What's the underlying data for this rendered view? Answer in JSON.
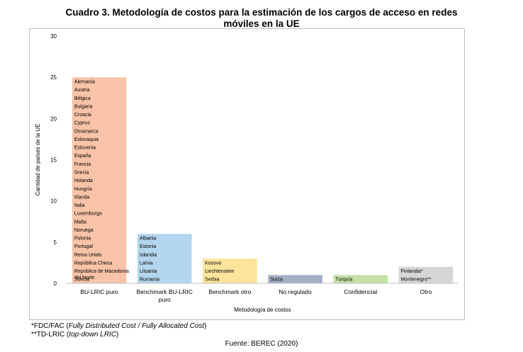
{
  "title_line1": "Cuadro 3. Metodología de costos para la estimación de los cargos de acceso en redes",
  "title_line2": "móviles en la UE",
  "chart_data": {
    "type": "bar",
    "title": "Cuadro 3. Metodología de costos para la estimación de los cargos de acceso en redes móviles en la UE",
    "xlabel": "Metodología de costos",
    "ylabel": "Cantidad de países de la UE",
    "ylim": [
      0,
      30
    ],
    "yticks": [
      0,
      5,
      10,
      15,
      20,
      25,
      30
    ],
    "grid": false,
    "categories": [
      "BU-LRIC puro",
      "Benchmark BU-LRIC puro",
      "Benchmark otro",
      "No regulado",
      "Confidencial",
      "Otro"
    ],
    "values": [
      25,
      6,
      3,
      1,
      1,
      2
    ],
    "colors": [
      "#f8c3a8",
      "#b4d5ee",
      "#fde49c",
      "#a4aec4",
      "#c5e0a5",
      "#d6d6d6"
    ],
    "bar_labels": [
      [
        "Alemania",
        "Austria",
        "Bélgica",
        "Bulgaria",
        "Croacia",
        "Cyprus",
        "Dinamarca",
        "Eslovaquia",
        "Eslovenia",
        "España",
        "Francia",
        "Grecia",
        "Holanda",
        "Hungría",
        "Irlanda",
        "Italia",
        "Luxemburgo",
        "Malta",
        "Noruega",
        "Polonia",
        "Portugal",
        "Reino Unido",
        "República Checa",
        "República de Macedonia del Norte",
        "Suecia"
      ],
      [
        "Albania",
        "Estonia",
        "Islandia",
        "Latvia",
        "Lituania",
        "Rumania"
      ],
      [
        "Kosovo",
        "Liechtenstein",
        "Serbia"
      ],
      [
        "Suiza"
      ],
      [
        "Turquía"
      ],
      [
        "Finlandia*",
        "Montenegro**"
      ]
    ]
  },
  "footnotes": {
    "fn1_prefix": "*FDC/FAC (",
    "fn1_italic": "Fully Distributed Cost / Fully Allocated Cost",
    "fn1_suffix": ")",
    "fn2_prefix": "**TD-LRIC (",
    "fn2_italic": "top-down LRIC",
    "fn2_suffix": ")"
  },
  "source": "Fuente: BEREC (2020)"
}
